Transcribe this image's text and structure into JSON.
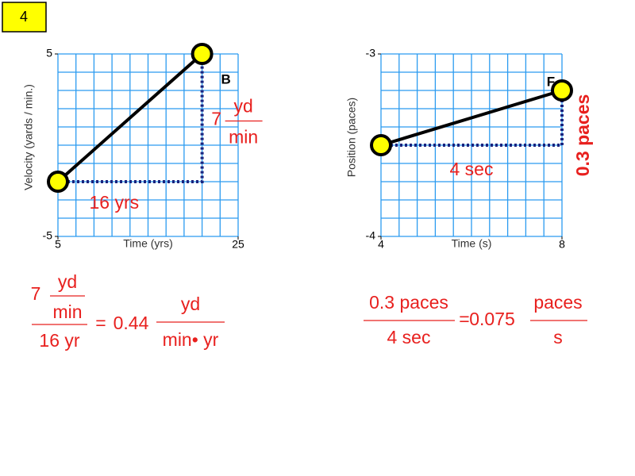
{
  "slide_number": "4",
  "chart_data": [
    {
      "type": "line",
      "x_label": "Time (yrs)",
      "y_label": "Velocity (yards / min.)",
      "x": [
        5,
        21
      ],
      "series": [
        {
          "color": "#000000",
          "values": [
            -2,
            5
          ]
        }
      ],
      "xlim": [
        5,
        25
      ],
      "ylim": [
        -5,
        5
      ],
      "xticks": [
        5,
        25
      ],
      "yticks": [
        5,
        -5
      ],
      "grid": true,
      "point_label": "B",
      "run_label": "16 yrs",
      "rise_label": {
        "number": "7",
        "numerator": "yd",
        "denominator": "min"
      }
    },
    {
      "type": "line",
      "x_label": "Time (s)",
      "y_label": "Position (paces)",
      "x": [
        4,
        8
      ],
      "series": [
        {
          "color": "#000000",
          "values": [
            -3.5,
            -3.2
          ]
        }
      ],
      "xlim": [
        4,
        8
      ],
      "ylim": [
        -4,
        -3
      ],
      "xticks": [
        4,
        8
      ],
      "yticks": [
        -3,
        -4
      ],
      "grid": true,
      "point_label": "F",
      "run_label": "4 sec",
      "rise_label": "0.3 paces"
    }
  ],
  "equations": [
    {
      "numerator": {
        "number": "7",
        "numerator": "yd",
        "denominator": "min"
      },
      "denominator": "16 yr",
      "equals": "=",
      "result": "0.44",
      "unit": {
        "numerator": "yd",
        "denominator": "min• yr"
      }
    },
    {
      "numerator": "0.3 paces",
      "denominator": "4 sec",
      "equals": "=",
      "result": "0.075",
      "unit": {
        "numerator": "paces",
        "denominator": "s"
      }
    }
  ]
}
